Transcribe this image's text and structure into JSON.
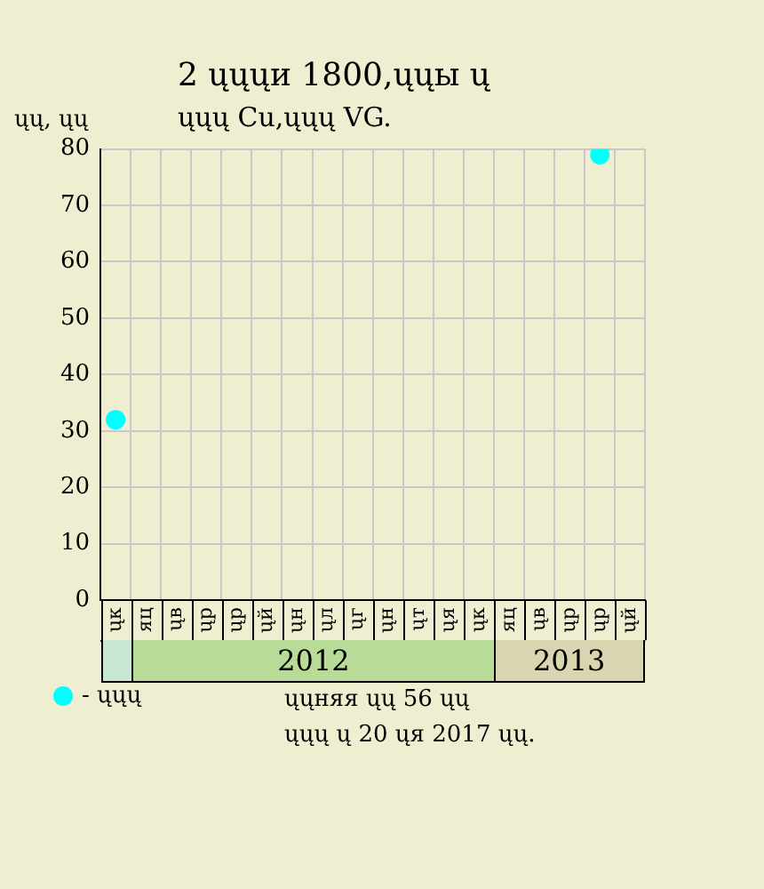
{
  "chart_data": {
    "type": "scatter",
    "title": "2 ųųųи 1800,ųųы ų",
    "subtitle": "ųųų Cu,ųųų VG.",
    "ylabel": "ųų, ųų",
    "categories": [
      "ųк",
      "яц",
      "ųв",
      "ųр",
      "ųр",
      "ųй",
      "ųн",
      "ųл",
      "ųг",
      "ųн",
      "ųт",
      "ųя",
      "ųк",
      "яц",
      "ųв",
      "ųр",
      "ųр",
      "ųй"
    ],
    "series": [
      {
        "name": "- ųųų",
        "color": "#00ffff",
        "values": [
          32,
          null,
          null,
          null,
          null,
          null,
          null,
          null,
          null,
          null,
          null,
          null,
          null,
          null,
          null,
          null,
          79,
          null
        ]
      }
    ],
    "ylim": [
      0,
      80
    ],
    "yticks": [
      0,
      10,
      20,
      30,
      40,
      50,
      60,
      70,
      80
    ],
    "grid": true,
    "legend": "bottom left",
    "marker": "circle",
    "annotations": [
      "2012",
      "2013",
      "ųųняя ųų 56 ųų",
      "ųųų ų 20 ųя 2017 ųų."
    ]
  }
}
